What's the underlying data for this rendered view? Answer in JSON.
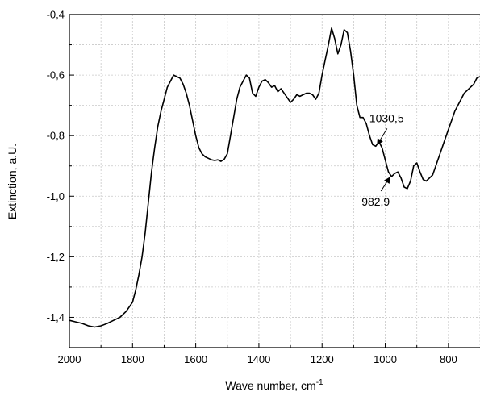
{
  "chart_data": {
    "type": "line",
    "title": "",
    "xlabel": "Wave number, cm",
    "xlabel_superscript": "-1",
    "ylabel": "Extinction, a.U.",
    "xlim": [
      2000,
      700
    ],
    "x_reversed": true,
    "ylim": [
      -1.5,
      -0.4
    ],
    "xticks": [
      2000,
      1800,
      1600,
      1400,
      1200,
      1000,
      800
    ],
    "xtick_labels": [
      "2000",
      "1800",
      "1600",
      "1400",
      "1200",
      "1000",
      "800"
    ],
    "yticks": [
      -1.4,
      -1.2,
      -1.0,
      -0.8,
      -0.6,
      -0.4
    ],
    "ytick_labels": [
      "-1,4",
      "-1,2",
      "-1,0",
      "-0,8",
      "-0,6",
      "-0,4"
    ],
    "grid": true,
    "line_color": "#000000",
    "grid_color": "#c8c8c8",
    "series": [
      {
        "x": [
          2000,
          1980,
          1960,
          1940,
          1920,
          1900,
          1880,
          1860,
          1840,
          1820,
          1800,
          1790,
          1780,
          1770,
          1760,
          1750,
          1740,
          1730,
          1720,
          1710,
          1700,
          1690,
          1680,
          1670,
          1660,
          1650,
          1640,
          1630,
          1620,
          1610,
          1600,
          1590,
          1580,
          1570,
          1560,
          1550,
          1540,
          1530,
          1520,
          1510,
          1500,
          1490,
          1480,
          1470,
          1460,
          1450,
          1440,
          1430,
          1420,
          1410,
          1400,
          1390,
          1380,
          1370,
          1360,
          1350,
          1340,
          1330,
          1320,
          1310,
          1300,
          1290,
          1280,
          1270,
          1260,
          1250,
          1240,
          1230,
          1220,
          1210,
          1200,
          1190,
          1180,
          1170,
          1160,
          1150,
          1140,
          1130,
          1120,
          1110,
          1100,
          1090,
          1080,
          1070,
          1060,
          1050,
          1040,
          1030,
          1020,
          1010,
          1000,
          990,
          980,
          970,
          960,
          950,
          940,
          930,
          920,
          910,
          900,
          890,
          880,
          870,
          860,
          850,
          840,
          830,
          820,
          810,
          800,
          790,
          780,
          770,
          760,
          750,
          740,
          730,
          720,
          710,
          700
        ],
        "values": [
          -1.41,
          -1.415,
          -1.42,
          -1.428,
          -1.432,
          -1.428,
          -1.42,
          -1.41,
          -1.4,
          -1.38,
          -1.35,
          -1.31,
          -1.26,
          -1.2,
          -1.12,
          -1.02,
          -0.92,
          -0.84,
          -0.77,
          -0.72,
          -0.68,
          -0.64,
          -0.62,
          -0.6,
          -0.605,
          -0.61,
          -0.63,
          -0.66,
          -0.7,
          -0.75,
          -0.8,
          -0.84,
          -0.86,
          -0.87,
          -0.875,
          -0.88,
          -0.882,
          -0.88,
          -0.885,
          -0.878,
          -0.86,
          -0.8,
          -0.74,
          -0.68,
          -0.64,
          -0.62,
          -0.6,
          -0.61,
          -0.66,
          -0.67,
          -0.64,
          -0.62,
          -0.615,
          -0.625,
          -0.64,
          -0.635,
          -0.655,
          -0.645,
          -0.66,
          -0.675,
          -0.69,
          -0.68,
          -0.665,
          -0.67,
          -0.665,
          -0.66,
          -0.66,
          -0.665,
          -0.68,
          -0.66,
          -0.6,
          -0.55,
          -0.5,
          -0.445,
          -0.48,
          -0.53,
          -0.5,
          -0.45,
          -0.46,
          -0.52,
          -0.6,
          -0.7,
          -0.74,
          -0.74,
          -0.76,
          -0.8,
          -0.83,
          -0.835,
          -0.82,
          -0.84,
          -0.88,
          -0.92,
          -0.935,
          -0.925,
          -0.92,
          -0.94,
          -0.97,
          -0.975,
          -0.95,
          -0.9,
          -0.89,
          -0.92,
          -0.945,
          -0.95,
          -0.94,
          -0.93,
          -0.9,
          -0.87,
          -0.84,
          -0.81,
          -0.78,
          -0.75,
          -0.72,
          -0.7,
          -0.68,
          -0.66,
          -0.65,
          -0.64,
          -0.63,
          -0.61,
          -0.605
        ]
      }
    ],
    "annotations": [
      {
        "text": "1030,5",
        "x": 1030,
        "y": -0.835
      },
      {
        "text": "982,9",
        "x": 983,
        "y": -0.93
      }
    ]
  }
}
